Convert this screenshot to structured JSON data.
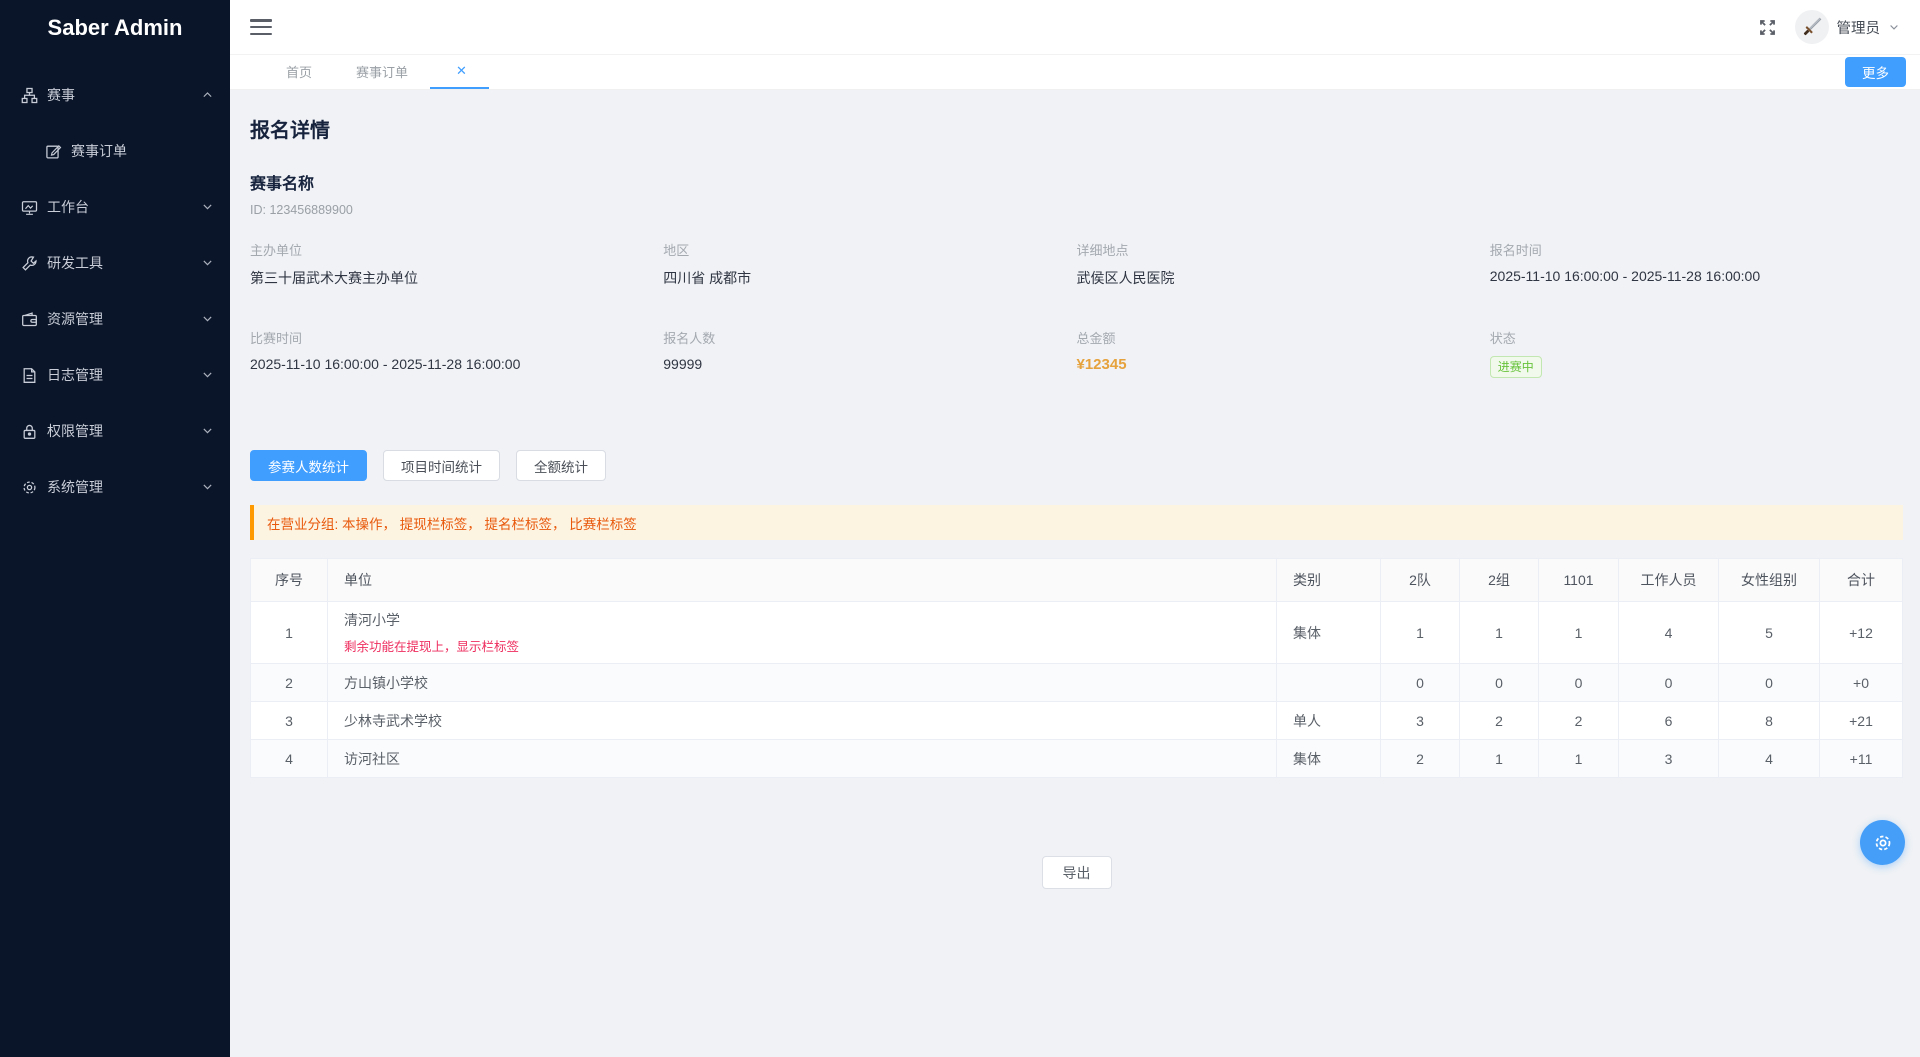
{
  "sidebar": {
    "title": "Saber Admin",
    "items": [
      {
        "label": "赛事",
        "icon": "org-chart-icon",
        "chevron": "up",
        "children": [
          {
            "label": "赛事订单",
            "icon": "form-edit-icon"
          }
        ]
      },
      {
        "label": "工作台",
        "icon": "monitor-icon",
        "chevron": "down"
      },
      {
        "label": "研发工具",
        "icon": "wrench-icon",
        "chevron": "down"
      },
      {
        "label": "资源管理",
        "icon": "wallet-icon",
        "chevron": "down"
      },
      {
        "label": "日志管理",
        "icon": "document-icon",
        "chevron": "down"
      },
      {
        "label": "权限管理",
        "icon": "lock-icon",
        "chevron": "down"
      },
      {
        "label": "系统管理",
        "icon": "gear-icon",
        "chevron": "down"
      }
    ]
  },
  "topbar": {
    "user_name": "管理员"
  },
  "tabbar": {
    "tabs": [
      {
        "label": "首页",
        "active": false,
        "closable": false
      },
      {
        "label": "赛事订单",
        "active": false,
        "closable": false
      },
      {
        "label": "",
        "active": true,
        "closable": true
      }
    ],
    "close_glyph": "✕",
    "more_label": "更多"
  },
  "page": {
    "title": "报名详情",
    "event_name": "赛事名称",
    "event_id": "ID: 123456889900",
    "fields": [
      {
        "label": "主办单位",
        "value": "第三十届武术大赛主办单位",
        "style": "text"
      },
      {
        "label": "地区",
        "value": "四川省 成都市",
        "style": "text"
      },
      {
        "label": "详细地点",
        "value": "武侯区人民医院",
        "style": "text"
      },
      {
        "label": "报名时间",
        "value": "2025-11-10 16:00:00 - 2025-11-28 16:00:00",
        "style": "text"
      },
      {
        "label": "比赛时间",
        "value": "2025-11-10 16:00:00 - 2025-11-28 16:00:00",
        "style": "text"
      },
      {
        "label": "报名人数",
        "value": "99999",
        "style": "text"
      },
      {
        "label": "总金额",
        "value": "¥12345",
        "style": "money"
      },
      {
        "label": "状态",
        "value": "进赛中",
        "style": "badge"
      }
    ],
    "stat_tabs": [
      {
        "label": "参赛人数统计",
        "active": true
      },
      {
        "label": "项目时间统计",
        "active": false
      },
      {
        "label": "全额统计",
        "active": false
      }
    ],
    "alert": "在营业分组: 本操作， 提现栏标签， 提名栏标签， 比赛栏标签",
    "table": {
      "headers": [
        "序号",
        "单位",
        "类别",
        "2队",
        "2组",
        "1101",
        "工作人员",
        "女性组别",
        "合计"
      ],
      "rows": [
        {
          "no": "1",
          "unit": "清河小学",
          "note": "剩余功能在提现上，显示栏标签",
          "type": "集体",
          "cols": [
            "1",
            "1",
            "1",
            "4",
            "5"
          ],
          "total": "+12"
        },
        {
          "no": "2",
          "unit": "方山镇小学校",
          "note": "",
          "type": "",
          "cols": [
            "0",
            "0",
            "0",
            "0",
            "0"
          ],
          "total": "+0"
        },
        {
          "no": "3",
          "unit": "少林寺武术学校",
          "note": "",
          "type": "单人",
          "cols": [
            "3",
            "2",
            "2",
            "6",
            "8"
          ],
          "total": "+21"
        },
        {
          "no": "4",
          "unit": "访河社区",
          "note": "",
          "type": "集体",
          "cols": [
            "2",
            "1",
            "1",
            "3",
            "4"
          ],
          "total": "+11"
        }
      ]
    },
    "export_label": "导出"
  },
  "colors": {
    "primary": "#409eff",
    "warning_orange": "#e6a23c",
    "success_green": "#67c23a",
    "alert_text": "#e8590c",
    "alert_bar": "#ff9900",
    "note_red": "#ee2d5e",
    "sidebar_bg": "#0a1529"
  }
}
